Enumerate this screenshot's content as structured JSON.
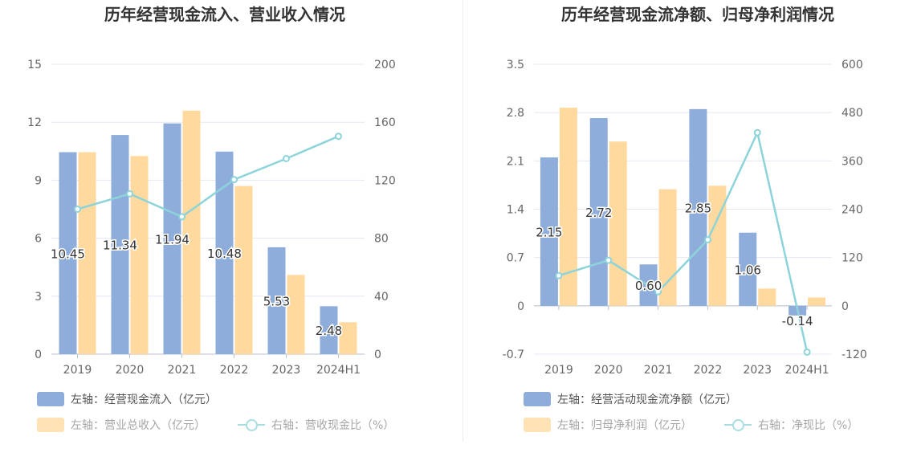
{
  "chart_data": [
    {
      "type": "bar",
      "title": "历年经营现金流入、营业收入情况",
      "categories": [
        "2019",
        "2020",
        "2021",
        "2022",
        "2023",
        "2024H1"
      ],
      "left_axis": {
        "ylim": [
          0,
          15
        ],
        "ticks": [
          "0",
          "3",
          "6",
          "9",
          "12",
          "15"
        ]
      },
      "right_axis": {
        "ylim": [
          0,
          200
        ],
        "ticks": [
          "0",
          "40",
          "80",
          "120",
          "160",
          "200"
        ]
      },
      "series": [
        {
          "name": "左轴：经营现金流入（亿元）",
          "kind": "bar",
          "axis": "left",
          "color": "#8eadda",
          "values": [
            10.45,
            11.34,
            11.94,
            10.48,
            5.53,
            2.48
          ],
          "labels": [
            "10.45",
            "11.34",
            "11.94",
            "10.48",
            "5.53",
            "2.48"
          ]
        },
        {
          "name": "左轴：营业总收入（亿元）",
          "kind": "bar",
          "axis": "left",
          "color": "#ffd99d",
          "values": [
            10.45,
            10.25,
            12.6,
            8.7,
            4.1,
            1.65
          ]
        },
        {
          "name": "右轴：营收现金比（%）",
          "kind": "line",
          "axis": "right",
          "color": "#8dd4da",
          "values": [
            100,
            110.6,
            94.8,
            120.4,
            134.9,
            150.3
          ]
        }
      ]
    },
    {
      "type": "bar",
      "title": "历年经营现金流净额、归母净利润情况",
      "categories": [
        "2019",
        "2020",
        "2021",
        "2022",
        "2023",
        "2024H1"
      ],
      "left_axis": {
        "ylim": [
          -0.7,
          3.5
        ],
        "ticks": [
          "-0.7",
          "0",
          "0.7",
          "1.4",
          "2.1",
          "2.8",
          "3.5"
        ]
      },
      "right_axis": {
        "ylim": [
          -120,
          600
        ],
        "ticks": [
          "-120",
          "0",
          "120",
          "240",
          "360",
          "480",
          "600"
        ]
      },
      "series": [
        {
          "name": "左轴：经营活动现金流净额（亿元）",
          "kind": "bar",
          "axis": "left",
          "color": "#8eadda",
          "values": [
            2.15,
            2.72,
            0.6,
            2.85,
            1.06,
            -0.14
          ],
          "labels": [
            "2.15",
            "2.72",
            "0.60",
            "2.85",
            "1.06",
            "-0.14"
          ]
        },
        {
          "name": "左轴：归母净利润（亿元）",
          "kind": "bar",
          "axis": "left",
          "color": "#ffd99d",
          "values": [
            2.87,
            2.38,
            1.69,
            1.74,
            0.25,
            0.12
          ]
        },
        {
          "name": "右轴：净现比（%）",
          "kind": "line",
          "axis": "right",
          "color": "#8dd4da",
          "values": [
            75,
            113,
            35,
            164,
            430,
            -115
          ]
        }
      ]
    }
  ]
}
